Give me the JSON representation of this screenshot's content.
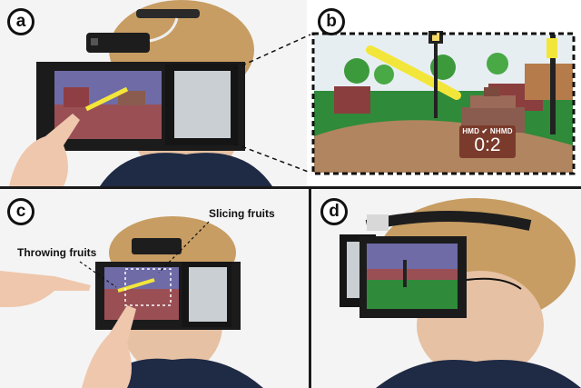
{
  "panels": {
    "a": {
      "label": "a"
    },
    "b": {
      "label": "b",
      "scoreboard": {
        "header": "HMD ✔ NHMD",
        "score": "0:2"
      }
    },
    "c": {
      "label": "c",
      "callouts": {
        "throwing": "Throwing fruits",
        "slicing": "Slicing fruits"
      }
    },
    "d": {
      "label": "d"
    }
  },
  "colors": {
    "sky": "#ffffff",
    "grass": "#2f8a3a",
    "path": "#b08560",
    "hoodie": "#1f2a44",
    "hair": "#c8a06a",
    "device": "#1b1b1b",
    "banana": "#f3e63a"
  }
}
